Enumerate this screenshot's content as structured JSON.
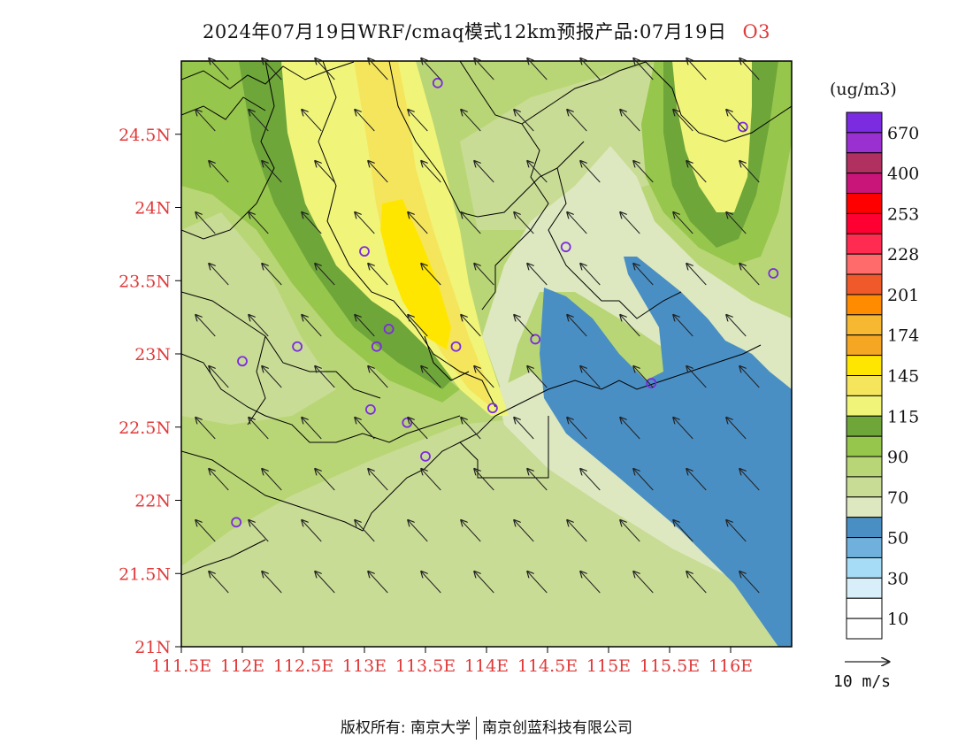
{
  "header": {
    "title": "2024年07月19日WRF/cmaq模式12km预报产品:07月19日",
    "species": "O3"
  },
  "chart_data": {
    "type": "heatmap",
    "variable": "O3",
    "unit_label": "(ug/m3)",
    "x_ticks": [
      "111.5E",
      "112E",
      "112.5E",
      "113E",
      "113.5E",
      "114E",
      "114.5E",
      "115E",
      "115.5E",
      "116E"
    ],
    "y_ticks": [
      "21N",
      "21.5N",
      "22N",
      "22.5N",
      "23N",
      "23.5N",
      "24N",
      "24.5N"
    ],
    "xlim": [
      111.5,
      116.5
    ],
    "ylim": [
      21.0,
      25.0
    ],
    "colorbar": {
      "colors": [
        "#ffffff",
        "#d8eef8",
        "#a6dcf5",
        "#6fb0dc",
        "#4a8fc4",
        "#dde8c0",
        "#c9dc95",
        "#b9d676",
        "#97c64c",
        "#6ea63a",
        "#f0f57a",
        "#f5e55c",
        "#ffe600",
        "#f5b830",
        "#f5a623",
        "#ff8c00",
        "#f05a2a",
        "#ff6a6a",
        "#ff2b50",
        "#ff0033",
        "#ff0000",
        "#d4147a",
        "#b03060",
        "#8f2fc8",
        "#7b2be0"
      ],
      "labels": [
        "10",
        "30",
        "50",
        "70",
        "90",
        "115",
        "145",
        "174",
        "201",
        "228",
        "253",
        "400",
        "670"
      ]
    },
    "stations": [
      {
        "lon": 113.6,
        "lat": 24.85
      },
      {
        "lon": 116.1,
        "lat": 24.55
      },
      {
        "lon": 113.0,
        "lat": 23.7
      },
      {
        "lon": 114.65,
        "lat": 23.73
      },
      {
        "lon": 116.35,
        "lat": 23.55
      },
      {
        "lon": 113.2,
        "lat": 23.17
      },
      {
        "lon": 113.1,
        "lat": 23.05
      },
      {
        "lon": 113.75,
        "lat": 23.05
      },
      {
        "lon": 114.4,
        "lat": 23.1
      },
      {
        "lon": 112.45,
        "lat": 23.05
      },
      {
        "lon": 112.0,
        "lat": 22.95
      },
      {
        "lon": 113.05,
        "lat": 22.62
      },
      {
        "lon": 113.35,
        "lat": 22.53
      },
      {
        "lon": 114.05,
        "lat": 22.63
      },
      {
        "lon": 113.5,
        "lat": 22.3
      },
      {
        "lon": 115.35,
        "lat": 22.8
      },
      {
        "lon": 111.95,
        "lat": 21.85
      }
    ],
    "wind": {
      "direction": "southeast to northwest",
      "reference_label": "10 m/s"
    }
  },
  "footer": {
    "copyright": "版权所有: 南京大学",
    "company": "南京创蓝科技有限公司"
  }
}
